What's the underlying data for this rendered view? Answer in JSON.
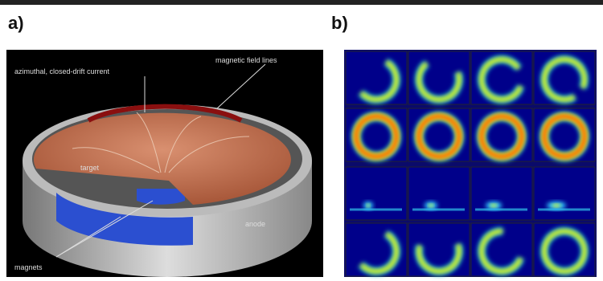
{
  "panels": [
    {
      "label": "a)",
      "annotations": [
        "azimuthal, closed-drift current",
        "magnetic field lines",
        "target",
        "anode",
        "magnets"
      ]
    },
    {
      "label": "b)"
    }
  ]
}
